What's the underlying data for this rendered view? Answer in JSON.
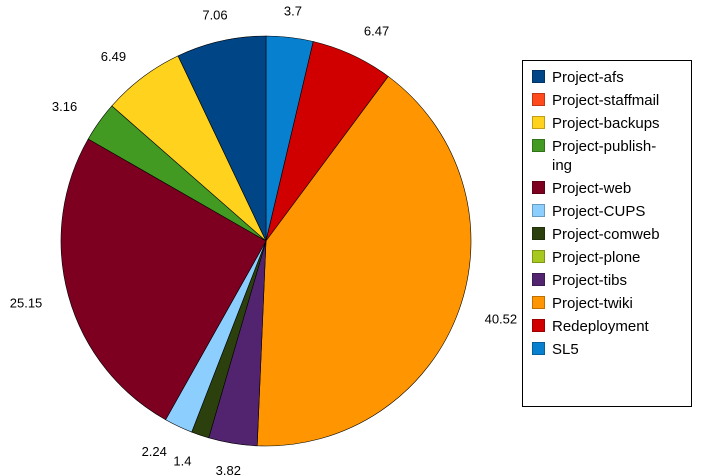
{
  "chart_data": {
    "type": "pie",
    "title": "",
    "start": "top",
    "direction": "clockwise",
    "slices": [
      {
        "label": "SL5",
        "value": 3.7,
        "color": "#0780d0"
      },
      {
        "label": "Redeployment",
        "value": 6.47,
        "color": "#d00000"
      },
      {
        "label": "Project-twiki",
        "value": 40.52,
        "color": "#ff9500"
      },
      {
        "label": "Project-tibs",
        "value": 3.82,
        "color": "#52246f"
      },
      {
        "label": "Project-plone",
        "value": 0,
        "color": "#a7c81e"
      },
      {
        "label": "Project-comweb",
        "value": 1.4,
        "color": "#2b400d"
      },
      {
        "label": "Project-CUPS",
        "value": 2.24,
        "color": "#8ccfff"
      },
      {
        "label": "Project-web",
        "value": 25.15,
        "color": "#7e0021"
      },
      {
        "label": "Project-publishing",
        "value": 3.16,
        "color": "#439a22"
      },
      {
        "label": "Project-backups",
        "value": 6.49,
        "color": "#ffd21e"
      },
      {
        "label": "Project-staffmail",
        "value": 0,
        "color": "#ff4a1b"
      },
      {
        "label": "Project-afs",
        "value": 7.06,
        "color": "#004586"
      }
    ],
    "data_labels": [
      "3.7",
      "6.47",
      "40.52",
      "3.82",
      "",
      "1.4",
      "2.24",
      "25.15",
      "3.16",
      "6.49",
      "",
      "7.06"
    ],
    "legend": {
      "position": "right",
      "items": [
        {
          "label": "Project-afs",
          "color": "#004586"
        },
        {
          "label": "Project-staffmail",
          "color": "#ff4a1b"
        },
        {
          "label": "Project-backups",
          "color": "#ffd21e"
        },
        {
          "label": "Project-publish-ing",
          "color": "#439a22"
        },
        {
          "label": "Project-web",
          "color": "#7e0021"
        },
        {
          "label": "Project-CUPS",
          "color": "#8ccfff"
        },
        {
          "label": "Project-comweb",
          "color": "#2b400d"
        },
        {
          "label": "Project-plone",
          "color": "#a7c81e"
        },
        {
          "label": "Project-tibs",
          "color": "#52246f"
        },
        {
          "label": "Project-twiki",
          "color": "#ff9500"
        },
        {
          "label": "Redeployment",
          "color": "#d00000"
        },
        {
          "label": "SL5",
          "color": "#0780d0"
        }
      ]
    }
  }
}
